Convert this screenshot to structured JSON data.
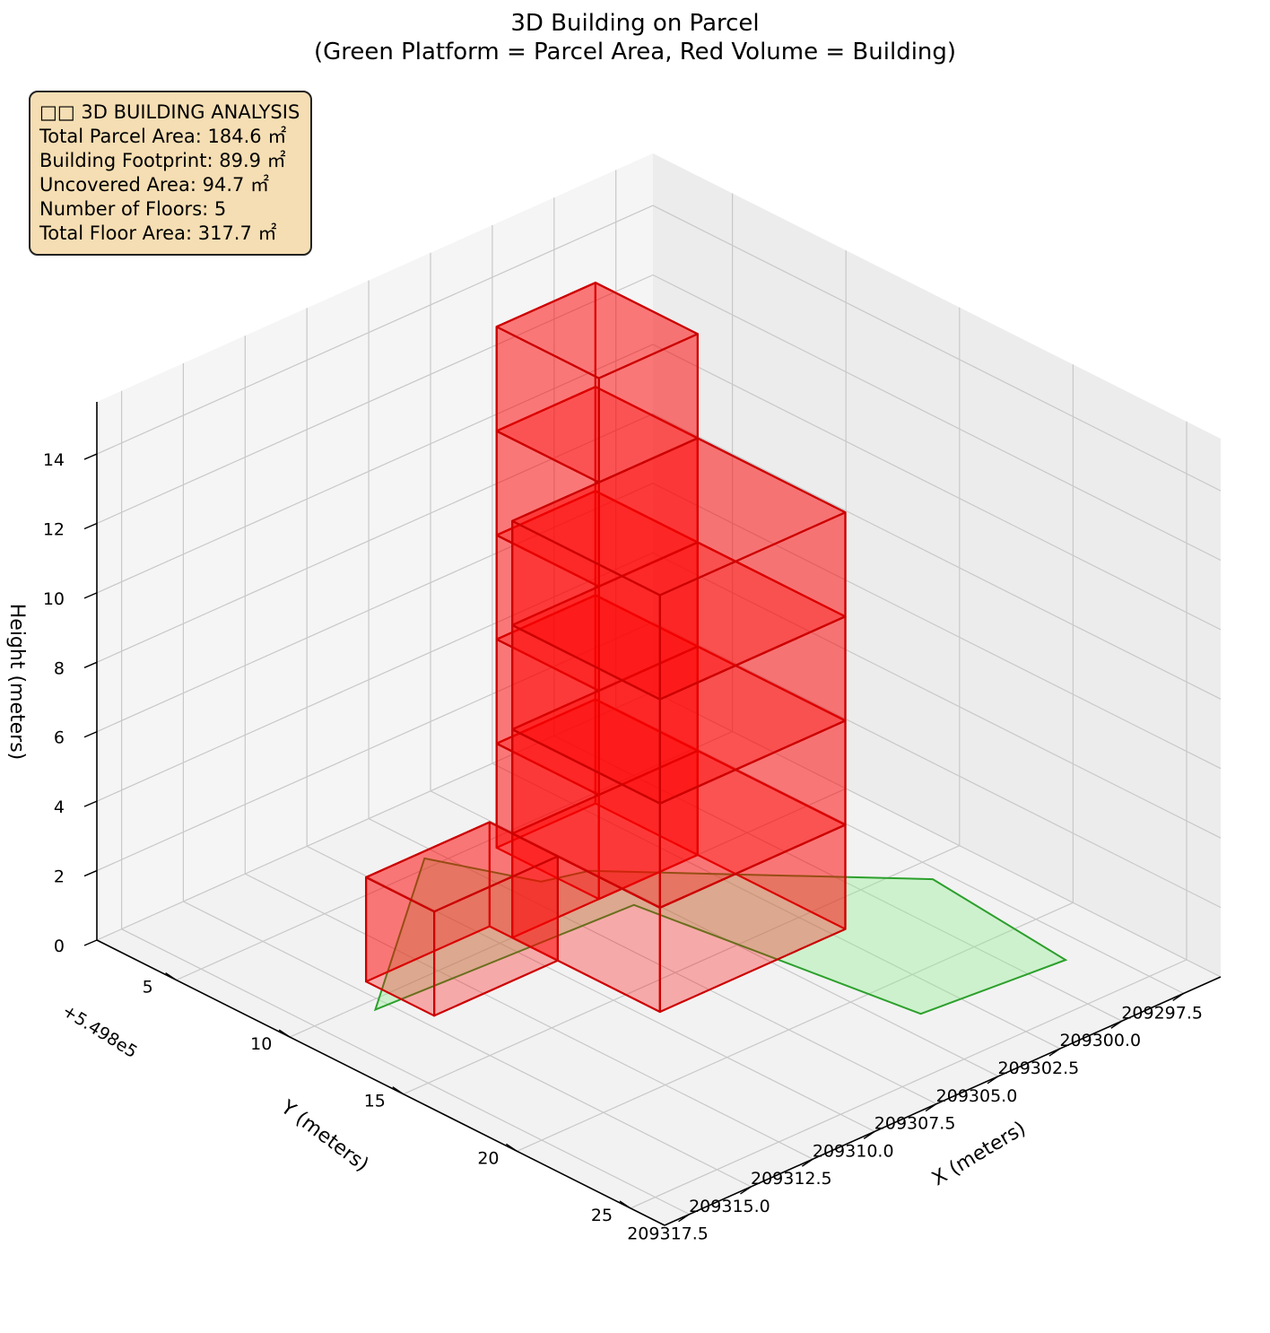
{
  "chart_data": {
    "type": "3d-polygons",
    "title": "3D Building on Parcel",
    "subtitle": "(Green Platform = Parcel Area, Red Volume = Building)",
    "xlabel": "X (meters)",
    "ylabel": "Y (meters)",
    "zlabel": "Height (meters)",
    "y_offset_label": "+5.498e5",
    "x_ticks": [
      "209297.5",
      "209300.0",
      "209302.5",
      "209305.0",
      "209307.5",
      "209310.0",
      "209312.5",
      "209315.0",
      "209317.5"
    ],
    "y_ticks": [
      "5",
      "10",
      "15",
      "20",
      "25"
    ],
    "z_ticks": [
      "0",
      "2",
      "4",
      "6",
      "8",
      "10",
      "12",
      "14"
    ],
    "xlim": [
      209296.0,
      209318.5
    ],
    "ylim": [
      1.5,
      26.5
    ],
    "zlim": [
      0,
      15.5
    ],
    "grid": true,
    "view": {
      "elev": 20,
      "azim": 45
    },
    "parcel": {
      "color": "#2ca02c",
      "fill": "#90ee90",
      "height": 0,
      "polygon": [
        [
          209298.0,
          16.0
        ],
        [
          209298.6,
          22.5
        ],
        [
          209304.0,
          22.0
        ],
        [
          209305.5,
          11.0
        ],
        [
          209315.5,
          10.5
        ],
        [
          209308.0,
          4.5
        ],
        [
          209306.5,
          8.0
        ],
        [
          209305.0,
          8.5
        ]
      ]
    },
    "building": {
      "color": "#ff0000",
      "edge_color": "#cc0000",
      "floors": 5,
      "floor_height": 3.0,
      "total_height": 15.0,
      "footprint": [
        [
          209302.0,
          6.0
        ],
        [
          209302.0,
          16.5
        ],
        [
          209305.5,
          16.0
        ],
        [
          209309.5,
          16.0
        ],
        [
          209309.5,
          12.0
        ],
        [
          209314.5,
          12.0
        ],
        [
          209314.5,
          9.0
        ],
        [
          209312.0,
          9.0
        ],
        [
          209310.0,
          10.0
        ],
        [
          209306.0,
          10.0
        ],
        [
          209306.0,
          6.0
        ]
      ],
      "steps": [
        {
          "x0": 209302.0,
          "x1": 209306.0,
          "y0": 5.5,
          "y1": 10.0,
          "z0": 0,
          "z1": 15.0
        },
        {
          "x0": 209302.0,
          "x1": 209309.5,
          "y0": 10.0,
          "y1": 16.5,
          "z0": 0,
          "z1": 12.0
        },
        {
          "x0": 209309.5,
          "x1": 209314.5,
          "y0": 9.0,
          "y1": 12.0,
          "z0": 0,
          "z1": 3.0
        }
      ]
    },
    "info": {
      "heading": "□□ 3D BUILDING ANALYSIS",
      "lines": [
        "Total Parcel Area: 184.6 ㎡",
        "Building Footprint: 89.9 ㎡",
        "Uncovered Area: 94.7 ㎡",
        "Number of Floors: 5",
        "Total Floor Area: 317.7 ㎡"
      ]
    }
  }
}
